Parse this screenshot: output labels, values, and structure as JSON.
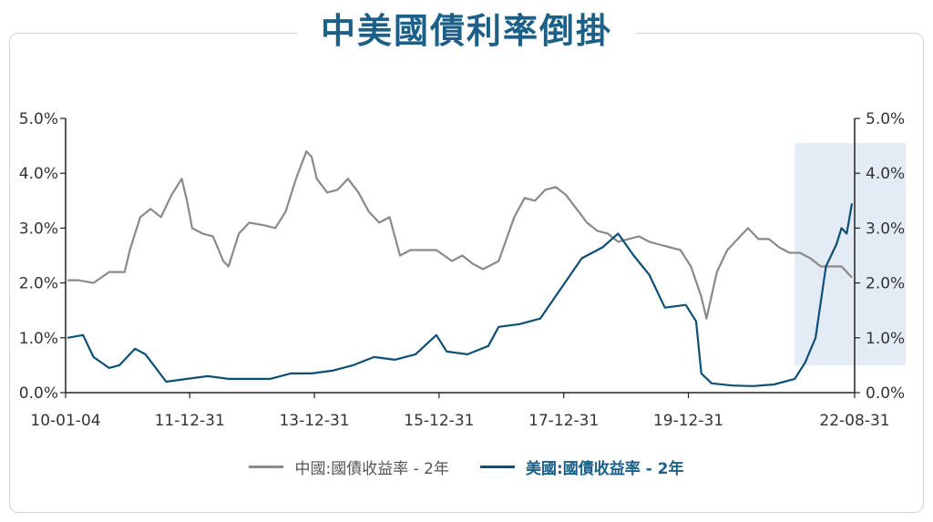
{
  "title": "中美國債利率倒掛",
  "colors": {
    "china": "#8a8a8a",
    "us": "#0e4f74",
    "title": "#1c5f87",
    "highlight": "#e3ebf5"
  },
  "legend": {
    "china": "中國:國債收益率 - 2年",
    "us": "美國:國債收益率 - 2年"
  },
  "chart_data": {
    "type": "line",
    "title": "中美國債利率倒掛",
    "x_ticks": [
      "10-01-04",
      "11-12-31",
      "13-12-31",
      "15-12-31",
      "17-12-31",
      "19-12-31",
      "22-08-31"
    ],
    "y_ticks_left": [
      "0.0%",
      "1.0%",
      "2.0%",
      "3.0%",
      "4.0%",
      "5.0%"
    ],
    "y_ticks_right": [
      "0.0%",
      "1.0%",
      "2.0%",
      "3.0%",
      "4.0%",
      "5.0%"
    ],
    "ylim": [
      0,
      5
    ],
    "xlim": [
      "2010-01-04",
      "2022-08-31"
    ],
    "highlight_region": {
      "x": [
        "2021-09",
        "2022-08-31"
      ],
      "y": [
        0.5,
        4.55
      ]
    },
    "series": [
      {
        "name": "中國:國債收益率 - 2年",
        "key": "china",
        "points": [
          [
            "2010-01",
            2.05
          ],
          [
            "2010-03",
            2.05
          ],
          [
            "2010-06",
            2.0
          ],
          [
            "2010-09",
            2.2
          ],
          [
            "2010-12",
            2.2
          ],
          [
            "2011-01",
            2.6
          ],
          [
            "2011-03",
            3.2
          ],
          [
            "2011-05",
            3.35
          ],
          [
            "2011-07",
            3.2
          ],
          [
            "2011-09",
            3.6
          ],
          [
            "2011-11",
            3.9
          ],
          [
            "2011-12",
            3.5
          ],
          [
            "2012-01",
            3.0
          ],
          [
            "2012-03",
            2.9
          ],
          [
            "2012-05",
            2.85
          ],
          [
            "2012-07",
            2.4
          ],
          [
            "2012-08",
            2.3
          ],
          [
            "2012-10",
            2.9
          ],
          [
            "2012-12",
            3.1
          ],
          [
            "2013-03",
            3.05
          ],
          [
            "2013-05",
            3.0
          ],
          [
            "2013-07",
            3.3
          ],
          [
            "2013-09",
            3.9
          ],
          [
            "2013-11",
            4.4
          ],
          [
            "2013-12",
            4.3
          ],
          [
            "2014-01",
            3.9
          ],
          [
            "2014-03",
            3.65
          ],
          [
            "2014-05",
            3.7
          ],
          [
            "2014-07",
            3.9
          ],
          [
            "2014-09",
            3.65
          ],
          [
            "2014-11",
            3.3
          ],
          [
            "2015-01",
            3.1
          ],
          [
            "2015-03",
            3.2
          ],
          [
            "2015-05",
            2.5
          ],
          [
            "2015-07",
            2.6
          ],
          [
            "2015-09",
            2.6
          ],
          [
            "2015-12",
            2.6
          ],
          [
            "2016-03",
            2.4
          ],
          [
            "2016-05",
            2.5
          ],
          [
            "2016-07",
            2.35
          ],
          [
            "2016-09",
            2.25
          ],
          [
            "2016-12",
            2.4
          ],
          [
            "2017-03",
            3.2
          ],
          [
            "2017-05",
            3.55
          ],
          [
            "2017-07",
            3.5
          ],
          [
            "2017-09",
            3.7
          ],
          [
            "2017-11",
            3.75
          ],
          [
            "2018-01",
            3.6
          ],
          [
            "2018-03",
            3.35
          ],
          [
            "2018-05",
            3.1
          ],
          [
            "2018-07",
            2.95
          ],
          [
            "2018-09",
            2.9
          ],
          [
            "2018-11",
            2.75
          ],
          [
            "2019-01",
            2.8
          ],
          [
            "2019-03",
            2.85
          ],
          [
            "2019-05",
            2.75
          ],
          [
            "2019-07",
            2.7
          ],
          [
            "2019-09",
            2.65
          ],
          [
            "2019-11",
            2.6
          ],
          [
            "2020-01",
            2.3
          ],
          [
            "2020-03",
            1.75
          ],
          [
            "2020-04",
            1.35
          ],
          [
            "2020-06",
            2.2
          ],
          [
            "2020-08",
            2.6
          ],
          [
            "2020-10",
            2.8
          ],
          [
            "2020-12",
            3.0
          ],
          [
            "2021-02",
            2.8
          ],
          [
            "2021-04",
            2.8
          ],
          [
            "2021-06",
            2.65
          ],
          [
            "2021-08",
            2.55
          ],
          [
            "2021-10",
            2.55
          ],
          [
            "2021-12",
            2.45
          ],
          [
            "2022-02",
            2.3
          ],
          [
            "2022-04",
            2.3
          ],
          [
            "2022-06",
            2.3
          ],
          [
            "2022-08",
            2.1
          ]
        ]
      },
      {
        "name": "美國:國債收益率 - 2年",
        "key": "us",
        "points": [
          [
            "2010-01",
            1.0
          ],
          [
            "2010-04",
            1.05
          ],
          [
            "2010-06",
            0.65
          ],
          [
            "2010-09",
            0.45
          ],
          [
            "2010-11",
            0.5
          ],
          [
            "2011-02",
            0.8
          ],
          [
            "2011-04",
            0.7
          ],
          [
            "2011-06",
            0.45
          ],
          [
            "2011-08",
            0.2
          ],
          [
            "2011-12",
            0.25
          ],
          [
            "2012-04",
            0.3
          ],
          [
            "2012-08",
            0.25
          ],
          [
            "2012-12",
            0.25
          ],
          [
            "2013-04",
            0.25
          ],
          [
            "2013-08",
            0.35
          ],
          [
            "2013-12",
            0.35
          ],
          [
            "2014-04",
            0.4
          ],
          [
            "2014-08",
            0.5
          ],
          [
            "2014-12",
            0.65
          ],
          [
            "2015-04",
            0.6
          ],
          [
            "2015-08",
            0.7
          ],
          [
            "2015-12",
            1.05
          ],
          [
            "2016-02",
            0.75
          ],
          [
            "2016-06",
            0.7
          ],
          [
            "2016-10",
            0.85
          ],
          [
            "2016-12",
            1.2
          ],
          [
            "2017-04",
            1.25
          ],
          [
            "2017-08",
            1.35
          ],
          [
            "2017-12",
            1.9
          ],
          [
            "2018-04",
            2.45
          ],
          [
            "2018-08",
            2.65
          ],
          [
            "2018-11",
            2.9
          ],
          [
            "2019-02",
            2.5
          ],
          [
            "2019-05",
            2.15
          ],
          [
            "2019-08",
            1.55
          ],
          [
            "2019-12",
            1.6
          ],
          [
            "2020-01",
            1.45
          ],
          [
            "2020-02",
            1.3
          ],
          [
            "2020-03",
            0.35
          ],
          [
            "2020-05",
            0.17
          ],
          [
            "2020-09",
            0.13
          ],
          [
            "2021-01",
            0.12
          ],
          [
            "2021-05",
            0.15
          ],
          [
            "2021-09",
            0.25
          ],
          [
            "2021-11",
            0.55
          ],
          [
            "2022-01",
            1.0
          ],
          [
            "2022-03",
            2.3
          ],
          [
            "2022-05",
            2.7
          ],
          [
            "2022-06",
            3.0
          ],
          [
            "2022-07",
            2.9
          ],
          [
            "2022-08",
            3.45
          ]
        ]
      }
    ]
  }
}
